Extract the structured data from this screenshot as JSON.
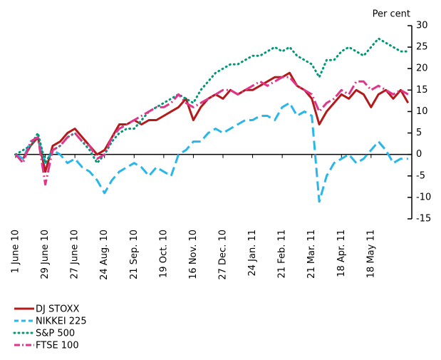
{
  "chart_data": {
    "type": "line",
    "y_axis_label": "Per cent",
    "categories": [
      "1 June 10",
      null,
      null,
      null,
      "29 June 10",
      null,
      null,
      null,
      "27 June 10",
      null,
      null,
      null,
      "24 Aug. 10",
      null,
      null,
      null,
      "21 Sep. 10",
      null,
      null,
      null,
      "19 Oct. 10",
      null,
      null,
      null,
      "16 Nov. 10",
      null,
      null,
      null,
      "27 Dec. 10",
      null,
      null,
      null,
      "24 Jan. 11",
      null,
      null,
      null,
      "21 Feb. 11",
      null,
      null,
      null,
      "21 Mar. 11",
      null,
      null,
      null,
      "18 Apr. 11",
      null,
      null,
      null,
      "18 May 11",
      null,
      null,
      null,
      null,
      null
    ],
    "series": [
      {
        "name": "DJ STOXX",
        "color": "#b31b1b",
        "style": "solid",
        "values": [
          0,
          -1,
          2,
          4,
          -4,
          2,
          3,
          5,
          6,
          4,
          2,
          0,
          1,
          4,
          7,
          7,
          8,
          7,
          8,
          8,
          9,
          10,
          11,
          13,
          8,
          11,
          13,
          14,
          13,
          15,
          14,
          15,
          15,
          16,
          17,
          18,
          18,
          19,
          16,
          15,
          13,
          7,
          10,
          12,
          14,
          13,
          15,
          14,
          11,
          14,
          15,
          13,
          15,
          12
        ]
      },
      {
        "name": "NIKKEI 225",
        "color": "#29b6e8",
        "style": "dashed",
        "values": [
          0,
          -1,
          3,
          4,
          -2,
          1,
          0,
          -2,
          -1,
          -3,
          -4,
          -6,
          -9,
          -6,
          -4,
          -3,
          -2,
          -3,
          -5,
          -3,
          -4,
          -5,
          0,
          1,
          3,
          3,
          5,
          6,
          5,
          6,
          7,
          8,
          8,
          9,
          9,
          8,
          11,
          12,
          9,
          10,
          9,
          -11,
          -5,
          -2,
          -1,
          0,
          -2,
          -1,
          1,
          3,
          1,
          -2,
          -1,
          -1
        ]
      },
      {
        "name": "S&P 500",
        "color": "#00977a",
        "style": "dotted",
        "values": [
          0,
          1,
          2,
          5,
          -2,
          1,
          2,
          4,
          5,
          3,
          1,
          -2,
          0,
          3,
          5,
          6,
          6,
          8,
          10,
          11,
          12,
          13,
          14,
          13,
          12,
          15,
          17,
          19,
          20,
          21,
          21,
          22,
          23,
          23,
          24,
          25,
          24,
          25,
          23,
          22,
          21,
          18,
          22,
          22,
          24,
          25,
          24,
          23,
          25,
          27,
          26,
          25,
          24,
          24
        ]
      },
      {
        "name": "FTSE 100",
        "color": "#e0358c",
        "style": "dashdot",
        "values": [
          0,
          -2,
          3,
          4,
          -7,
          1,
          2,
          4,
          5,
          3,
          2,
          -1,
          0,
          4,
          6,
          7,
          8,
          9,
          10,
          11,
          11,
          12,
          14,
          12,
          11,
          12,
          13,
          14,
          15,
          15,
          14,
          15,
          16,
          17,
          16,
          17,
          18,
          18,
          16,
          15,
          14,
          10,
          12,
          13,
          15,
          14,
          17,
          17,
          15,
          16,
          15,
          14,
          15,
          14
        ]
      }
    ],
    "ylim": [
      -15,
      30
    ],
    "yticks": [
      30,
      25,
      20,
      15,
      10,
      5,
      0,
      -5,
      -10,
      -15
    ]
  }
}
